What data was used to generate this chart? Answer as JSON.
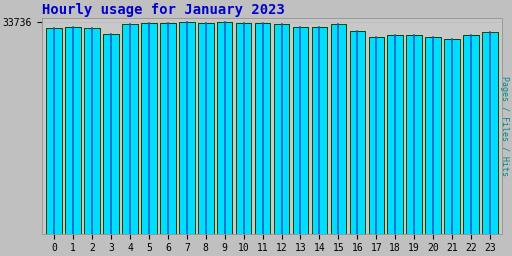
{
  "title": "Hourly usage for January 2023",
  "ylabel": "Pages / Files / Hits",
  "hours": [
    0,
    1,
    2,
    3,
    4,
    5,
    6,
    7,
    8,
    9,
    10,
    11,
    12,
    13,
    14,
    15,
    16,
    17,
    18,
    19,
    20,
    21,
    22,
    23
  ],
  "values": [
    32800,
    33000,
    32800,
    31800,
    33400,
    33600,
    33600,
    33736,
    33600,
    33736,
    33600,
    33600,
    33400,
    33000,
    33000,
    33400,
    32400,
    31400,
    31700,
    31700,
    31400,
    31100,
    31700,
    32100
  ],
  "bar_face_color": "#00DDFF",
  "bar_edge_color": "#004400",
  "bar_inner_line_color": "#0066CC",
  "background_color": "#C0C0C0",
  "plot_bg_color": "#C8C8C8",
  "title_color": "#0000CC",
  "ylabel_color": "#008888",
  "tick_label_color": "#000000",
  "grid_color": "#BBBBBB",
  "ymin": 0,
  "ymax": 33736,
  "ytick_value": 33736,
  "ytick_label": "33736",
  "title_fontsize": 10,
  "ylabel_fontsize": 6,
  "tick_fontsize": 7,
  "bar_width": 0.82
}
